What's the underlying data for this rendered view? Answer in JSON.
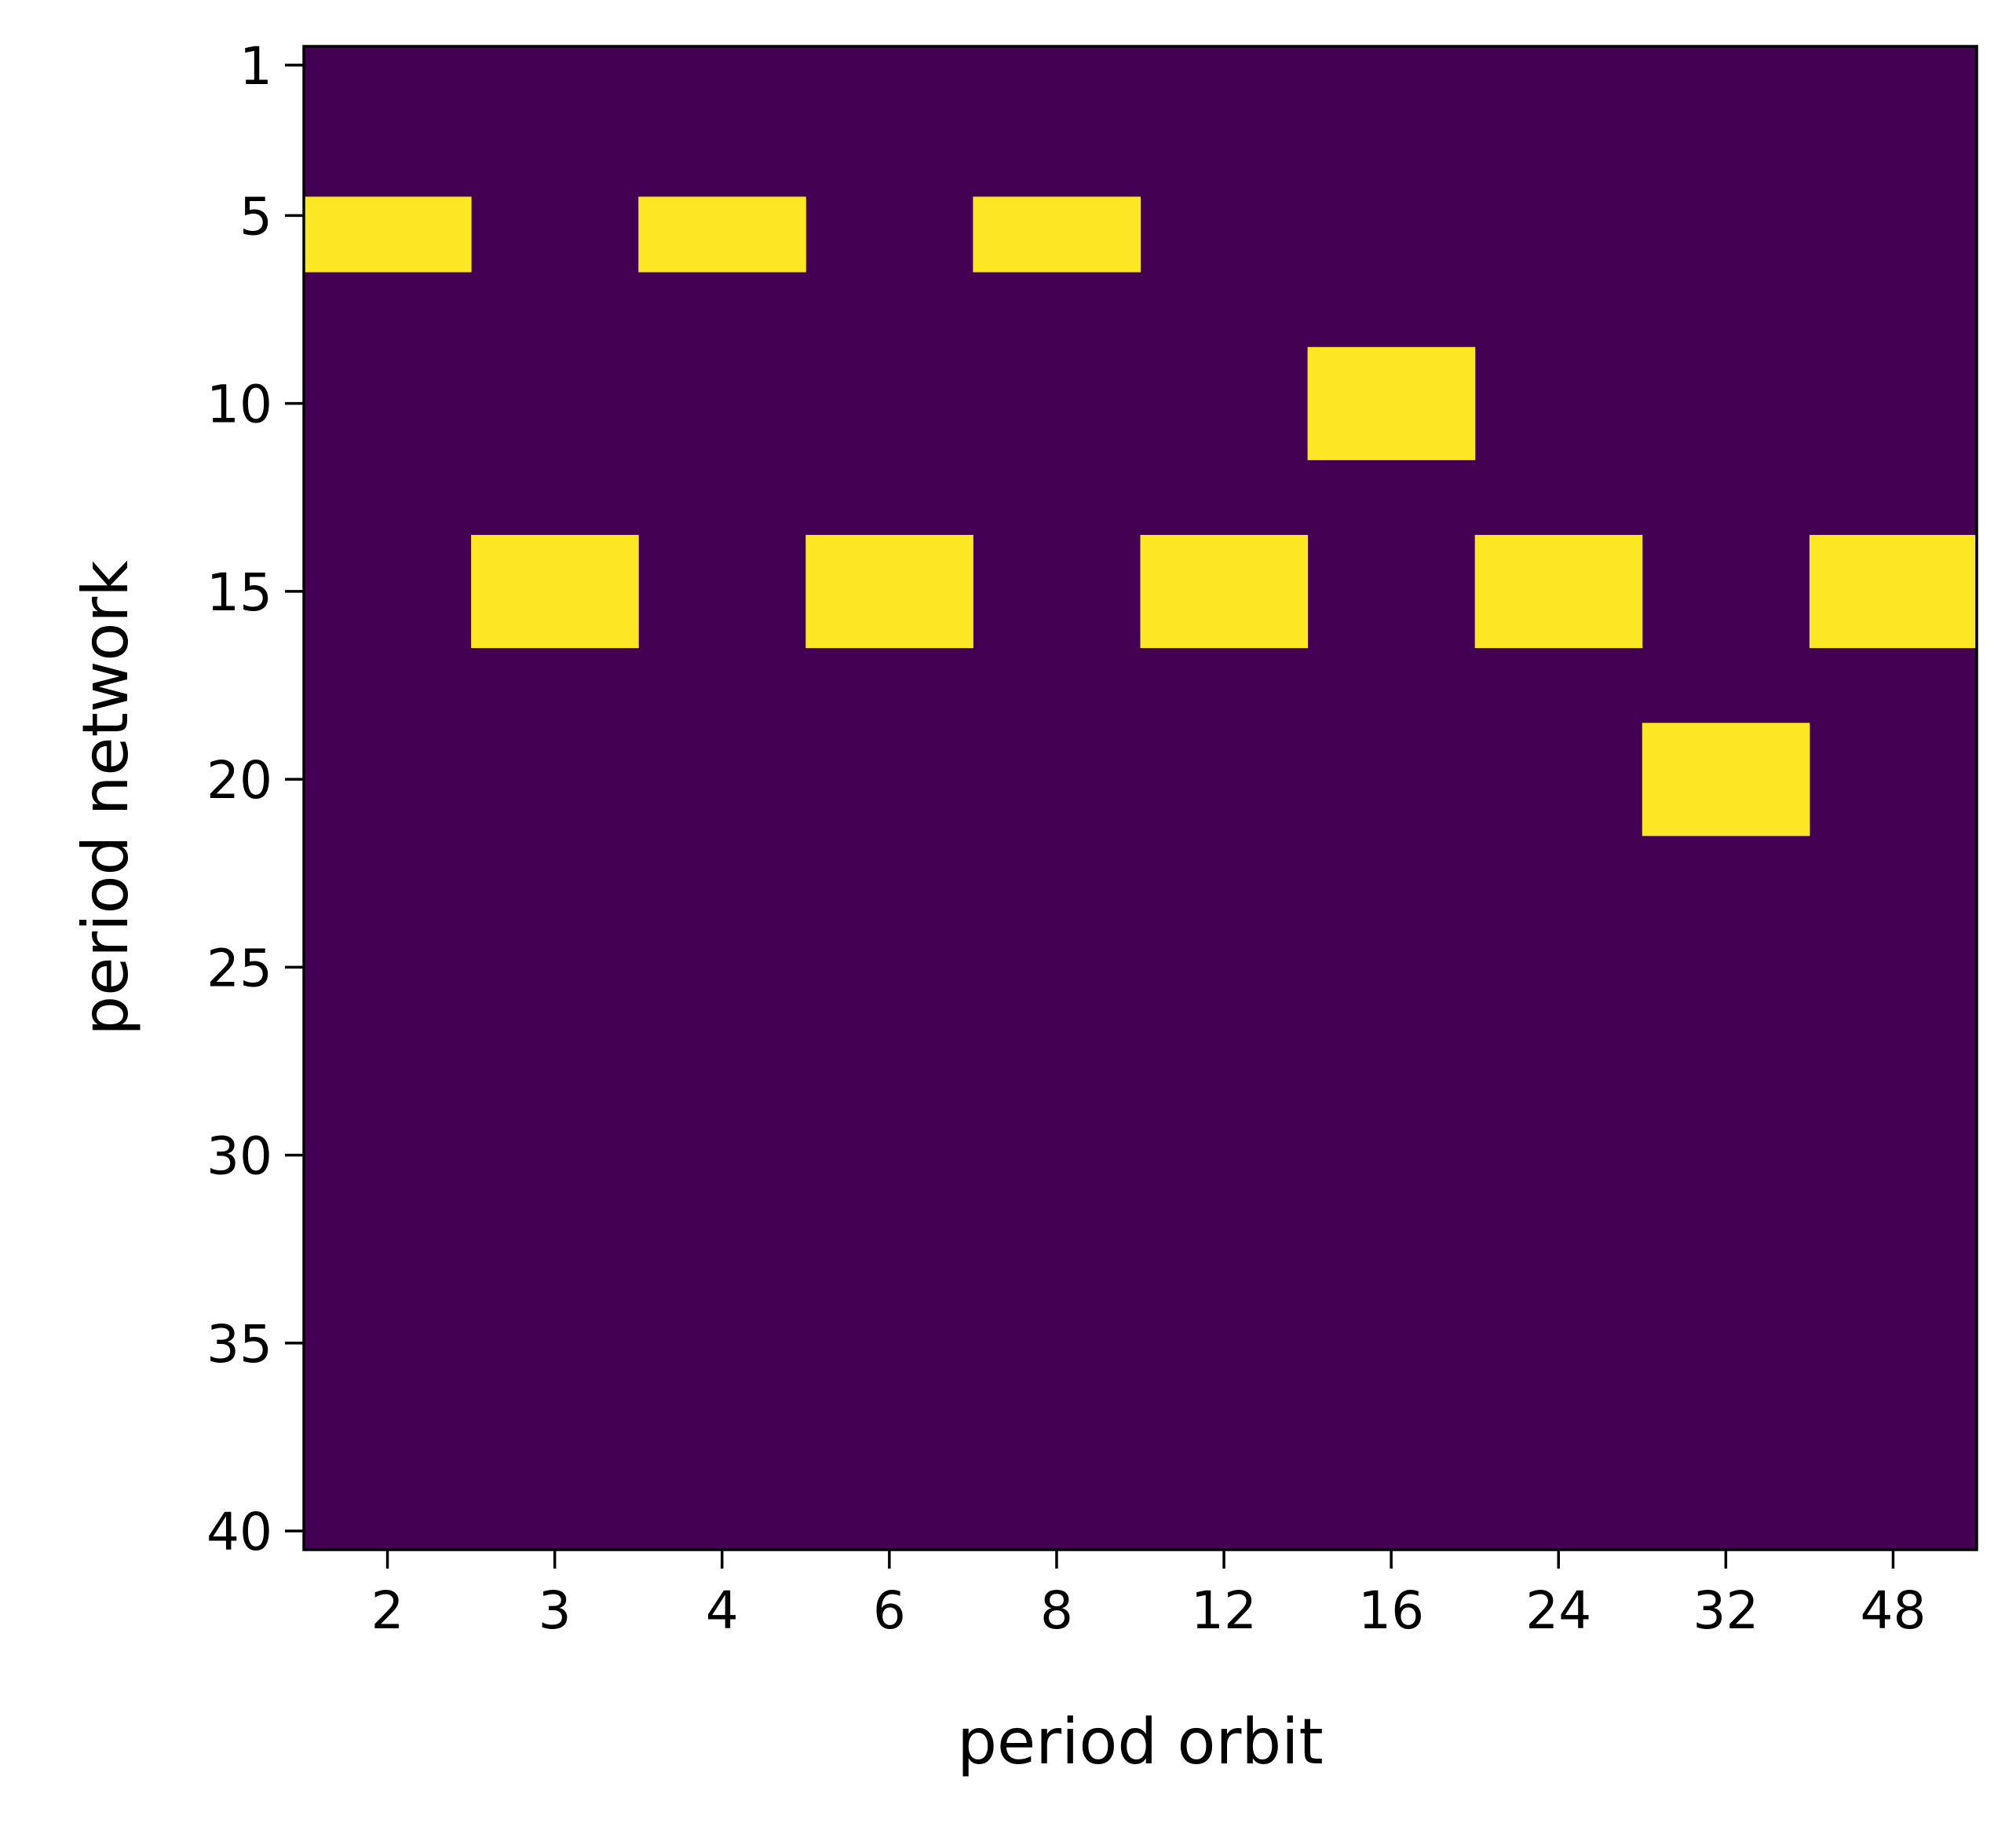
{
  "chart_data": {
    "type": "heatmap",
    "title": "",
    "xlabel": "period orbit",
    "ylabel": "period network",
    "x_categories": [
      "2",
      "3",
      "4",
      "6",
      "8",
      "12",
      "16",
      "24",
      "32",
      "48"
    ],
    "y_range": [
      1,
      40
    ],
    "y_ticks": [
      "1",
      "5",
      "10",
      "15",
      "20",
      "25",
      "30",
      "35",
      "40"
    ],
    "highlighted_cells": [
      {
        "x": "2",
        "y": [
          5,
          6
        ]
      },
      {
        "x": "4",
        "y": [
          5,
          6
        ]
      },
      {
        "x": "8",
        "y": [
          5,
          6
        ]
      },
      {
        "x": "16",
        "y": [
          9,
          10,
          11
        ]
      },
      {
        "x": "3",
        "y": [
          14,
          15,
          16
        ]
      },
      {
        "x": "6",
        "y": [
          14,
          15,
          16
        ]
      },
      {
        "x": "12",
        "y": [
          14,
          15,
          16
        ]
      },
      {
        "x": "24",
        "y": [
          14,
          15,
          16
        ]
      },
      {
        "x": "48",
        "y": [
          14,
          15,
          16
        ]
      },
      {
        "x": "32",
        "y": [
          19,
          20,
          21
        ]
      }
    ],
    "colors": {
      "background": "#440154",
      "highlight": "#fde725"
    },
    "grid": false,
    "legend": "none"
  }
}
